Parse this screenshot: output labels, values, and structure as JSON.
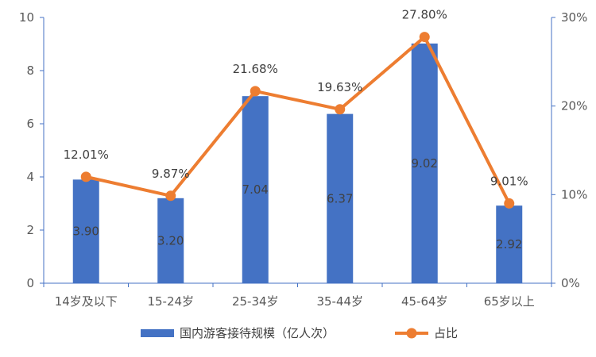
{
  "chart_data": {
    "type": "bar+line",
    "categories": [
      "14岁及以下",
      "15-24岁",
      "25-34岁",
      "35-44岁",
      "45-64岁",
      "65岁以上"
    ],
    "series": [
      {
        "name": "国内游客接待规模（亿人次）",
        "type": "bar",
        "axis": "left",
        "values": [
          3.9,
          3.2,
          7.04,
          6.37,
          9.02,
          2.92
        ],
        "labels": [
          "3.90",
          "3.20",
          "7.04",
          "6.37",
          "9.02",
          "2.92"
        ],
        "color": "#4472C4"
      },
      {
        "name": "占比",
        "type": "line",
        "axis": "right",
        "values": [
          12.01,
          9.87,
          21.68,
          19.63,
          27.8,
          9.01
        ],
        "labels": [
          "12.01%",
          "9.87%",
          "21.68%",
          "19.63%",
          "27.80%",
          "9.01%"
        ],
        "color": "#ED7D31"
      }
    ],
    "y_left": {
      "min": 0,
      "max": 10,
      "ticks": [
        "0",
        "2",
        "4",
        "6",
        "8",
        "10"
      ]
    },
    "y_right": {
      "min": 0,
      "max": 30,
      "ticks": [
        "0%",
        "10%",
        "20%",
        "30%"
      ]
    },
    "grid": false,
    "legend": "bottom",
    "title": "",
    "xlabel": "",
    "ylabel": ""
  }
}
